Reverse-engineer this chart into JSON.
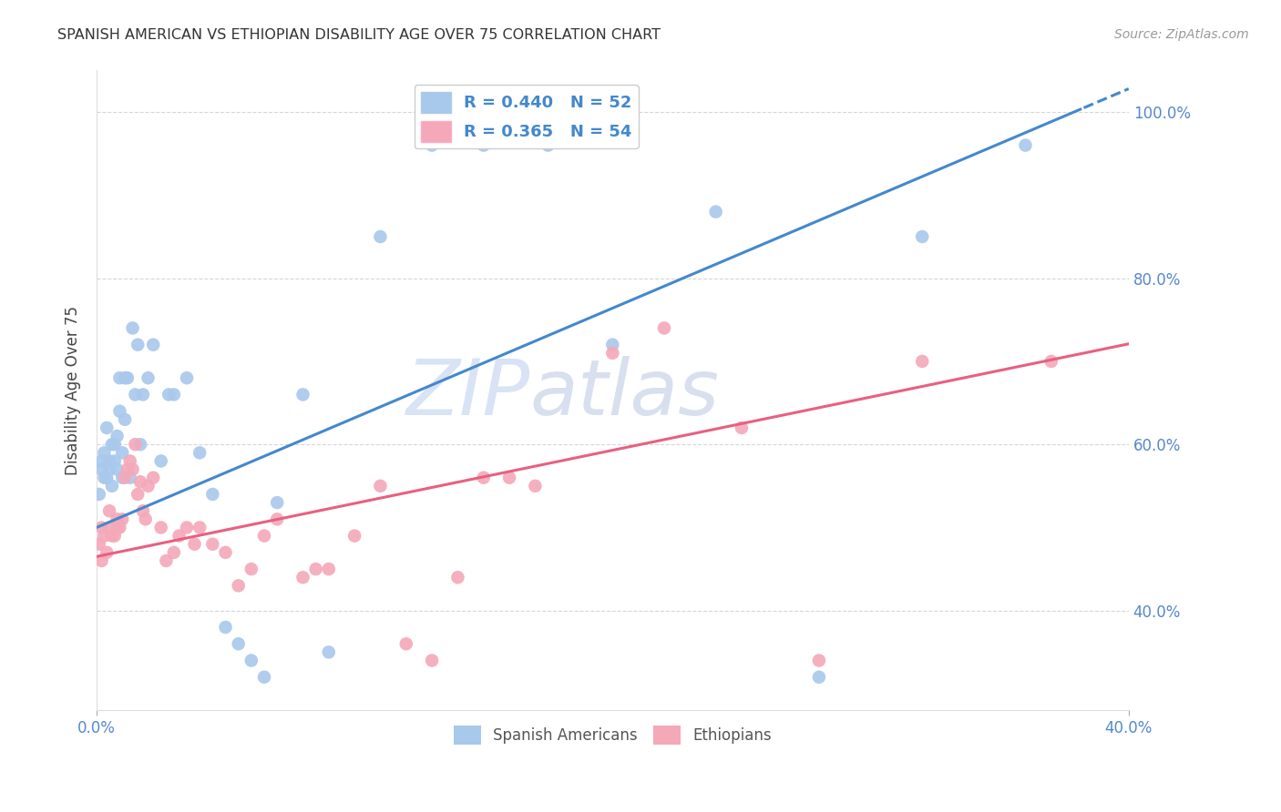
{
  "title": "SPANISH AMERICAN VS ETHIOPIAN DISABILITY AGE OVER 75 CORRELATION CHART",
  "source": "Source: ZipAtlas.com",
  "ylabel": "Disability Age Over 75",
  "xlim": [
    0.0,
    0.4
  ],
  "ylim": [
    0.28,
    1.05
  ],
  "xtick_vals": [
    0.0,
    0.4
  ],
  "xtick_labels": [
    "0.0%",
    "40.0%"
  ],
  "ytick_vals": [
    0.4,
    0.6,
    0.8,
    1.0
  ],
  "ytick_labels": [
    "40.0%",
    "60.0%",
    "80.0%",
    "100.0%"
  ],
  "blue_R": 0.44,
  "blue_N": 52,
  "pink_R": 0.365,
  "pink_N": 54,
  "blue_color": "#A8C8EC",
  "pink_color": "#F4A8B8",
  "blue_line_color": "#4488CC",
  "pink_line_color": "#E86080",
  "watermark_zip": "ZIP",
  "watermark_atlas": "atlas",
  "blue_intercept": 0.5,
  "blue_slope": 1.32,
  "pink_intercept": 0.465,
  "pink_slope": 0.64,
  "blue_x": [
    0.001,
    0.002,
    0.002,
    0.003,
    0.003,
    0.004,
    0.004,
    0.005,
    0.005,
    0.006,
    0.006,
    0.007,
    0.007,
    0.008,
    0.008,
    0.009,
    0.009,
    0.01,
    0.01,
    0.011,
    0.011,
    0.012,
    0.013,
    0.014,
    0.015,
    0.016,
    0.017,
    0.018,
    0.02,
    0.022,
    0.025,
    0.028,
    0.03,
    0.035,
    0.04,
    0.045,
    0.05,
    0.055,
    0.06,
    0.065,
    0.07,
    0.08,
    0.09,
    0.11,
    0.13,
    0.15,
    0.175,
    0.2,
    0.24,
    0.28,
    0.32,
    0.36
  ],
  "blue_y": [
    0.54,
    0.57,
    0.58,
    0.56,
    0.59,
    0.62,
    0.56,
    0.57,
    0.58,
    0.6,
    0.55,
    0.58,
    0.6,
    0.61,
    0.57,
    0.64,
    0.68,
    0.56,
    0.59,
    0.68,
    0.63,
    0.68,
    0.56,
    0.74,
    0.66,
    0.72,
    0.6,
    0.66,
    0.68,
    0.72,
    0.58,
    0.66,
    0.66,
    0.68,
    0.59,
    0.54,
    0.38,
    0.36,
    0.34,
    0.32,
    0.53,
    0.66,
    0.35,
    0.85,
    0.96,
    0.96,
    0.96,
    0.72,
    0.88,
    0.32,
    0.85,
    0.96
  ],
  "pink_x": [
    0.001,
    0.002,
    0.002,
    0.003,
    0.004,
    0.005,
    0.005,
    0.006,
    0.007,
    0.008,
    0.008,
    0.009,
    0.01,
    0.011,
    0.012,
    0.013,
    0.014,
    0.015,
    0.016,
    0.017,
    0.018,
    0.019,
    0.02,
    0.022,
    0.025,
    0.027,
    0.03,
    0.032,
    0.035,
    0.038,
    0.04,
    0.045,
    0.05,
    0.055,
    0.06,
    0.065,
    0.07,
    0.08,
    0.085,
    0.09,
    0.1,
    0.11,
    0.12,
    0.13,
    0.14,
    0.15,
    0.16,
    0.17,
    0.2,
    0.22,
    0.25,
    0.28,
    0.32,
    0.37
  ],
  "pink_y": [
    0.48,
    0.46,
    0.5,
    0.49,
    0.47,
    0.5,
    0.52,
    0.49,
    0.49,
    0.51,
    0.5,
    0.5,
    0.51,
    0.56,
    0.57,
    0.58,
    0.57,
    0.6,
    0.54,
    0.555,
    0.52,
    0.51,
    0.55,
    0.56,
    0.5,
    0.46,
    0.47,
    0.49,
    0.5,
    0.48,
    0.5,
    0.48,
    0.47,
    0.43,
    0.45,
    0.49,
    0.51,
    0.44,
    0.45,
    0.45,
    0.49,
    0.55,
    0.36,
    0.34,
    0.44,
    0.56,
    0.56,
    0.55,
    0.71,
    0.74,
    0.62,
    0.34,
    0.7,
    0.7
  ]
}
